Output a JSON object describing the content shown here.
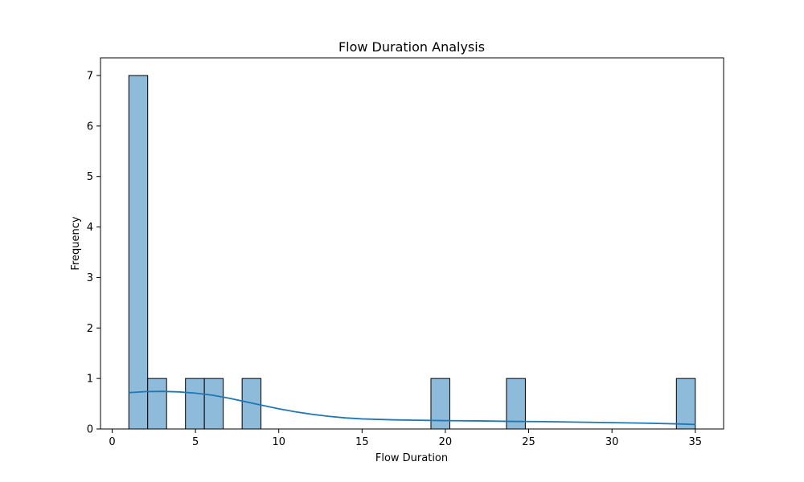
{
  "chart_data": {
    "type": "bar",
    "title": "Flow Duration Analysis",
    "xlabel": "Flow Duration",
    "ylabel": "Frequency",
    "xlim": [
      -0.7,
      36.7
    ],
    "ylim": [
      0,
      7.35
    ],
    "xticks": [
      0,
      5,
      10,
      15,
      20,
      25,
      30,
      35
    ],
    "yticks": [
      0,
      1,
      2,
      3,
      4,
      5,
      6,
      7
    ],
    "bin_width": 1.133,
    "bars": [
      {
        "x0": 1.0,
        "x1": 2.133,
        "count": 7
      },
      {
        "x0": 2.133,
        "x1": 3.267,
        "count": 1
      },
      {
        "x0": 4.4,
        "x1": 5.533,
        "count": 1
      },
      {
        "x0": 5.533,
        "x1": 6.667,
        "count": 1
      },
      {
        "x0": 7.8,
        "x1": 8.933,
        "count": 1
      },
      {
        "x0": 19.133,
        "x1": 20.267,
        "count": 1
      },
      {
        "x0": 23.667,
        "x1": 24.8,
        "count": 1
      },
      {
        "x0": 33.867,
        "x1": 35.0,
        "count": 1
      }
    ],
    "kde": {
      "x": [
        1,
        2,
        3,
        4,
        5,
        6,
        7,
        8,
        9,
        10,
        11,
        12,
        13,
        14,
        15,
        16,
        17,
        18,
        19,
        20,
        22,
        24,
        26,
        28,
        30,
        32,
        34,
        35
      ],
      "y": [
        0.72,
        0.74,
        0.745,
        0.735,
        0.71,
        0.67,
        0.61,
        0.54,
        0.47,
        0.4,
        0.34,
        0.29,
        0.25,
        0.22,
        0.2,
        0.19,
        0.18,
        0.175,
        0.17,
        0.165,
        0.16,
        0.15,
        0.145,
        0.135,
        0.125,
        0.115,
        0.1,
        0.09
      ]
    },
    "colors": {
      "bar_fill": "#8fbbda",
      "bar_edge": "#000000",
      "kde_line": "#1f77b4"
    },
    "grid": false,
    "legend": "none"
  }
}
